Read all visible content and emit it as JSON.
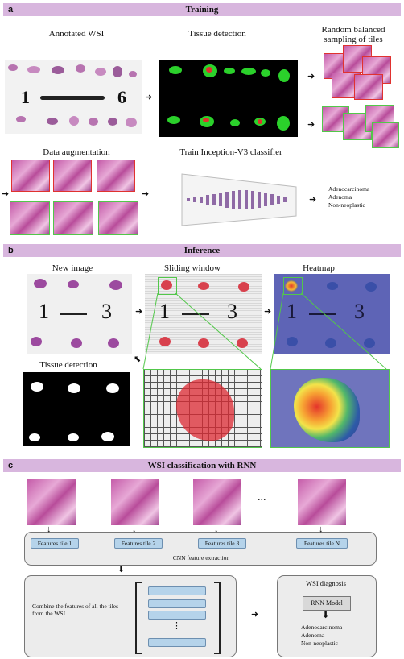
{
  "section_a": {
    "letter": "a",
    "title": "Training",
    "annotated_wsi": "Annotated WSI",
    "tissue_detection": "Tissue detection",
    "random_sampling": "Random balanced sampling of tiles",
    "data_augmentation": "Data augmentation",
    "train_classifier": "Train Inception-V3 classifier",
    "classes": [
      "Adenocarcinoma",
      "Adenoma",
      "Non-neoplastic"
    ],
    "slide_marks": [
      "1",
      "6"
    ]
  },
  "section_b": {
    "letter": "b",
    "title": "Inference",
    "new_image": "New image",
    "sliding_window": "Sliding window",
    "heatmap": "Heatmap",
    "tissue_detection": "Tissue detection",
    "slide_marks": [
      "1",
      "3"
    ]
  },
  "section_c": {
    "letter": "c",
    "title": "WSI classification with RNN",
    "ellipsis": "...",
    "features": [
      "Features tile 1",
      "Features tile 2",
      "Features tile 3",
      "Features tile N"
    ],
    "cnn_label": "CNN feature extraction",
    "combine_text": "Combine the features of all the tiles from the WSI",
    "vertical_ellipsis": "⋮",
    "diagnosis_title": "WSI diagnosis",
    "rnn_model": "RNN Model",
    "classes": [
      "Adenocarcinoma",
      "Adenoma",
      "Non-neoplastic"
    ]
  },
  "colors": {
    "header_bar": "#d8b6de",
    "tile_red": "#e0322f",
    "tile_green": "#52c74a",
    "feature_box": "#b5d3ea",
    "heatmap_bg": "#5e64b6"
  }
}
